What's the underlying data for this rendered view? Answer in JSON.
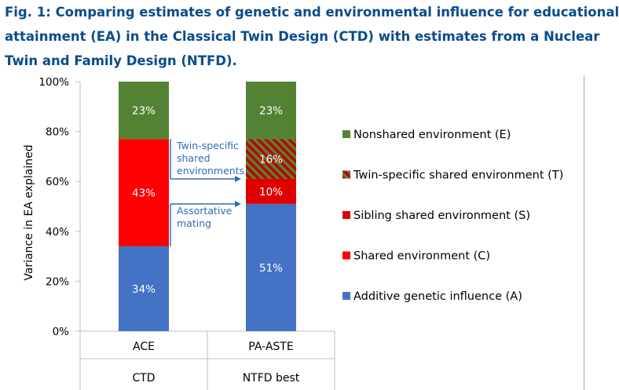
{
  "caption": {
    "line1": "Fig. 1: Comparing estimates of genetic and environmental influence for educational",
    "line2": "attainment (EA) in the Classical Twin Design (CTD) with estimates from a Nuclear",
    "line3": "Twin and Family Design (NTFD)."
  },
  "chart_data": {
    "type": "bar",
    "stacked": true,
    "title": "Fig. 1: Comparing estimates of genetic and environmental influence for educational attainment (EA) in the Classical Twin Design (CTD) with estimates from a Nuclear Twin and Family Design (NTFD).",
    "ylabel": "Variance in EA explained",
    "ylim": [
      0,
      100
    ],
    "yticks": [
      "0%",
      "20%",
      "40%",
      "60%",
      "80%",
      "100%"
    ],
    "ytick_values": [
      0,
      20,
      40,
      60,
      80,
      100
    ],
    "categories": [
      "ACE",
      "PA-ASTE"
    ],
    "groups": [
      "CTD",
      "NTFD best"
    ],
    "series": [
      {
        "name": "Additive genetic influence (A)",
        "color": "#4472c4",
        "pattern": "solid",
        "values": [
          34,
          51
        ],
        "labels": [
          "34%",
          "51%"
        ]
      },
      {
        "name": "Shared environment (C)",
        "color": "#ff0000",
        "pattern": "solid",
        "values": [
          43,
          0
        ],
        "labels": [
          "43%",
          ""
        ]
      },
      {
        "name": "Sibling shared environment (S)",
        "color": "#e00000",
        "pattern": "solid",
        "values": [
          0,
          10
        ],
        "labels": [
          "",
          "10%"
        ]
      },
      {
        "name": "Twin-specific shared environment (T)",
        "color": "#c00000",
        "pattern": "hatch",
        "values": [
          0,
          16
        ],
        "labels": [
          "",
          "16%"
        ]
      },
      {
        "name": "Nonshared environment (E)",
        "color": "#548235",
        "pattern": "solid",
        "values": [
          23,
          23
        ],
        "labels": [
          "23%",
          "23%"
        ]
      }
    ],
    "legend": {
      "position": "right",
      "order": [
        "Nonshared environment (E)",
        "Twin-specific shared environment (T)",
        "Sibling shared environment (S)",
        "Shared environment (C)",
        "Additive genetic influence (A)"
      ]
    },
    "annotations": [
      {
        "id": "twin",
        "lines": [
          "Twin-specific",
          "shared",
          "environments"
        ],
        "from_percent": 77,
        "to_percent": 61
      },
      {
        "id": "assort",
        "lines": [
          "Assortative",
          "mating"
        ],
        "from_percent": 34,
        "to_percent": 51
      }
    ]
  }
}
